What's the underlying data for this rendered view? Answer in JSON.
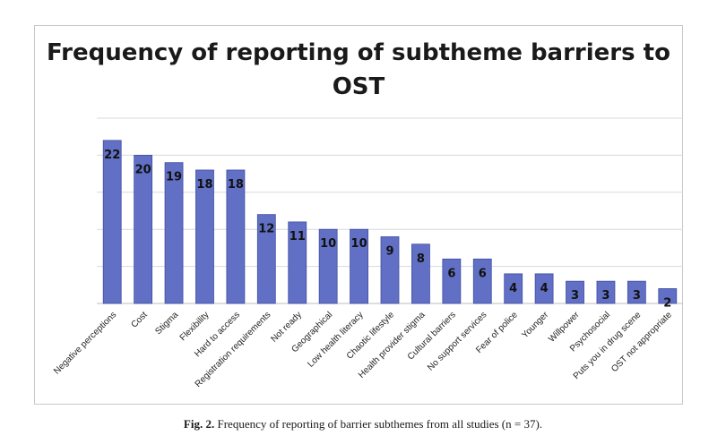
{
  "chart_data": {
    "type": "bar",
    "title": "Frequency of reporting of subtheme barriers to OST",
    "categories": [
      "Negative perceptions",
      "Cost",
      "Stigma",
      "Flexibility",
      "Hard to access",
      "Registration requirements",
      "Not ready",
      "Geographical",
      "Low health literacy",
      "Chaotic lifestyle",
      "Health provider stigma",
      "Cultural barriers",
      "No support services",
      "Fear of police",
      "Younger",
      "Willpower",
      "Psychosocial",
      "Puts you in drug scene",
      "OST not appropriate"
    ],
    "values": [
      22,
      20,
      19,
      18,
      18,
      12,
      11,
      10,
      10,
      9,
      8,
      6,
      6,
      4,
      4,
      3,
      3,
      3,
      2
    ],
    "ylim": [
      0,
      25
    ],
    "grid": true,
    "bar_color": "#6170c4",
    "bar_edge_color": "#3f4da6"
  },
  "caption": {
    "label": "Fig. 2.",
    "text": "Frequency of reporting of barrier subthemes from all studies (n = 37)."
  }
}
